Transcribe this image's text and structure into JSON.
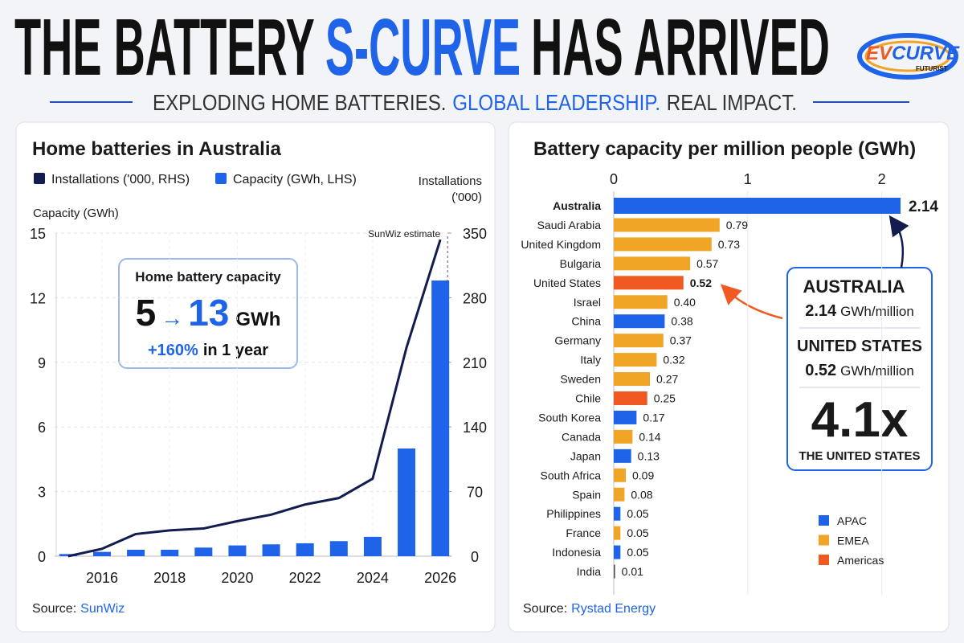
{
  "header": {
    "title": [
      "THE BATTERY",
      "S-CURVE",
      "HAS ARRIVED"
    ],
    "subtitle": [
      "EXPLODING HOME BATTERIES.",
      "GLOBAL LEADERSHIP.",
      "REAL IMPACT."
    ]
  },
  "logo": {
    "text": [
      "EV",
      "CURVE"
    ],
    "tagline": "FUTURIST"
  },
  "chart_data": [
    {
      "type": "combo",
      "title": "Home batteries in Australia",
      "ylabel": "Capacity (GWh)",
      "y2label": "Installations ('000)",
      "x": [
        2015,
        2016,
        2017,
        2018,
        2019,
        2020,
        2021,
        2022,
        2023,
        2024,
        2025,
        2026
      ],
      "xlim": [
        2014.6,
        2026.4
      ],
      "xticks": [
        2016,
        2018,
        2020,
        2022,
        2024,
        2026
      ],
      "ylim": [
        0,
        15
      ],
      "yticks": [
        0,
        3,
        6,
        9,
        12,
        15
      ],
      "y2lim": [
        0,
        350
      ],
      "y2ticks": [
        0,
        70,
        140,
        210,
        280,
        350
      ],
      "grid": true,
      "series": [
        {
          "name": "Installations ('000, RHS)",
          "color": "#121c4e",
          "mark": "line",
          "axis": "y2",
          "values": [
            0,
            8,
            24,
            28,
            30,
            38,
            45,
            56,
            63,
            84,
            226,
            343
          ]
        },
        {
          "name": "Capacity (GWh, LHS)",
          "color": "#1f63e8",
          "mark": "bar",
          "values": [
            0.1,
            0.2,
            0.3,
            0.3,
            0.4,
            0.5,
            0.55,
            0.6,
            0.7,
            0.9,
            5.0,
            12.8
          ]
        }
      ],
      "annotation": "SunWiz estimate",
      "callout": {
        "title": "Home battery capacity",
        "from": "5",
        "arrow": "→",
        "to": "13",
        "unit": "GWh",
        "change": "+160%",
        "change_text": "in 1 year"
      },
      "source": {
        "label": "Source:",
        "name": "SunWiz"
      }
    },
    {
      "type": "hbar",
      "title": "Battery capacity per million people (GWh)",
      "categories": [
        "Australia",
        "Saudi Arabia",
        "United Kingdom",
        "Bulgaria",
        "United States",
        "Israel",
        "China",
        "Germany",
        "Italy",
        "Sweden",
        "Chile",
        "South Korea",
        "Canada",
        "Japan",
        "South Africa",
        "Spain",
        "Philippines",
        "France",
        "Indonesia",
        "India"
      ],
      "values": [
        2.14,
        0.79,
        0.73,
        0.57,
        0.52,
        0.4,
        0.38,
        0.37,
        0.32,
        0.27,
        0.25,
        0.17,
        0.14,
        0.13,
        0.09,
        0.08,
        0.05,
        0.05,
        0.05,
        0.01
      ],
      "value_labels": [
        "2.14",
        "0.79",
        "0.73",
        "0.57",
        "0.52",
        "0.40",
        "0.38",
        "0.37",
        "0.32",
        "0.27",
        "0.25",
        "0.17",
        "0.14",
        "0.13",
        "0.09",
        "0.08",
        "0.05",
        "0.05",
        "0.05",
        "0.01"
      ],
      "colors": [
        "#1f63e8",
        "#f0a526",
        "#f0a526",
        "#f0a526",
        "#f05a22",
        "#f0a526",
        "#1f63e8",
        "#f0a526",
        "#f0a526",
        "#f0a526",
        "#f05a22",
        "#1f63e8",
        "#f0a526",
        "#1f63e8",
        "#f0a526",
        "#f0a526",
        "#1f63e8",
        "#f0a526",
        "#1f63e8",
        "#555555"
      ],
      "legend": [
        {
          "name": "APAC",
          "color": "#1f63e8"
        },
        {
          "name": "EMEA",
          "color": "#f0a526"
        },
        {
          "name": "Americas",
          "color": "#f05a22"
        }
      ],
      "xlim": [
        0,
        2.2
      ],
      "xticks": [
        0,
        1,
        2
      ],
      "grid": true,
      "callout": {
        "a_name": "AUSTRALIA",
        "a_value": "2.14",
        "a_unit": "GWh/million",
        "b_name": "UNITED STATES",
        "b_value": "0.52",
        "b_unit": "GWh/million",
        "ratio": "4.1x",
        "ratio_text": "THE UNITED STATES"
      },
      "source": {
        "label": "Source:",
        "name": "Rystad Energy"
      }
    }
  ]
}
